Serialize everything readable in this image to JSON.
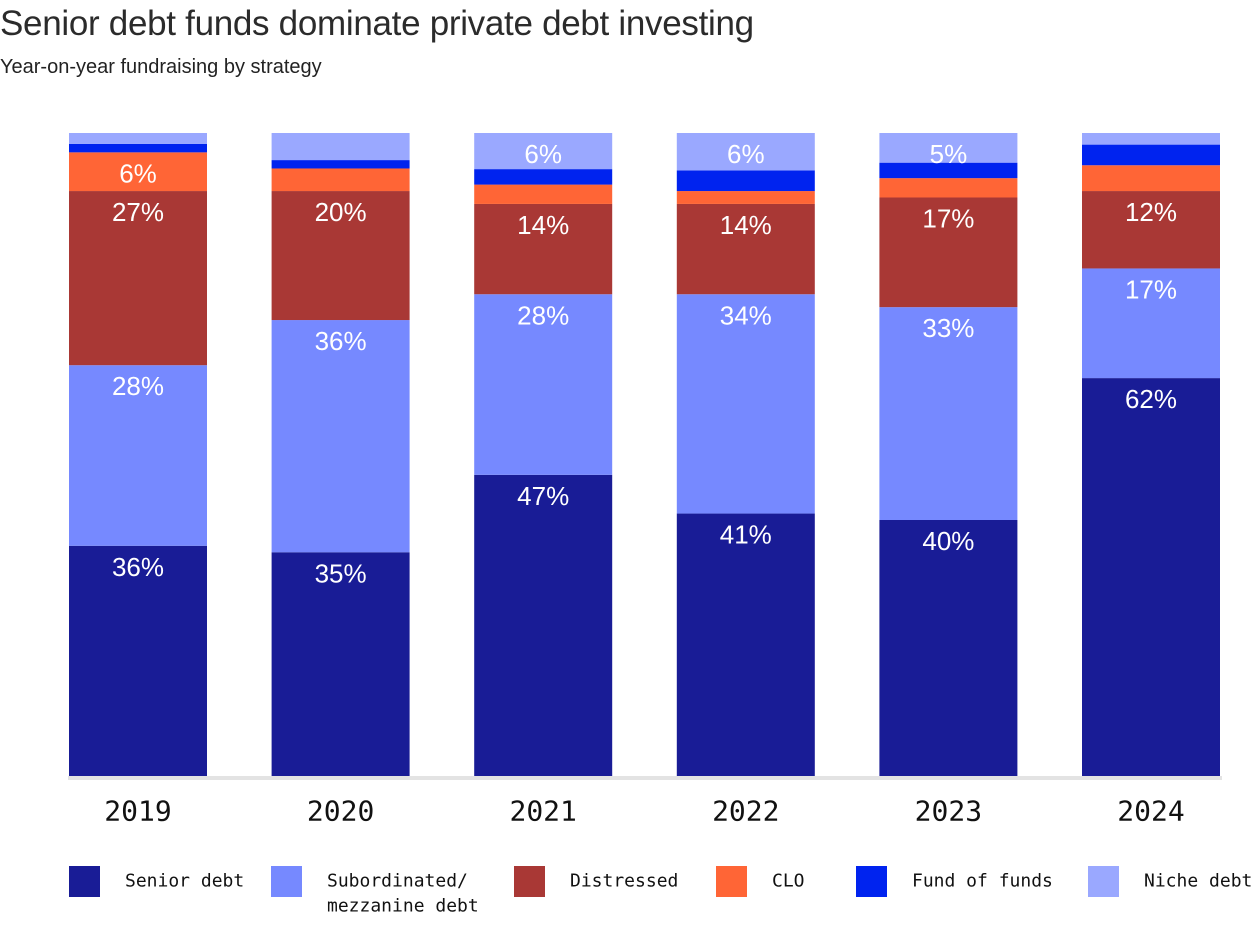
{
  "title": "Senior debt funds dominate private debt investing",
  "subtitle": "Year-on-year fundraising by strategy",
  "chart_data": {
    "type": "bar",
    "stacked": true,
    "normalized": true,
    "title": "Senior debt funds dominate private debt investing",
    "subtitle": "Year-on-year fundraising by strategy",
    "xlabel": "",
    "ylabel": "",
    "ylim": [
      0,
      100
    ],
    "grid": false,
    "legend_position": "bottom",
    "categories": [
      "2019",
      "2020",
      "2021",
      "2022",
      "2023",
      "2024"
    ],
    "series": [
      {
        "name": "Senior debt",
        "legend_label": [
          "Senior debt"
        ],
        "color": "#191c96",
        "values": [
          36,
          35,
          47,
          41,
          40,
          62
        ],
        "labels": [
          "36%",
          "35%",
          "47%",
          "41%",
          "40%",
          "62%"
        ]
      },
      {
        "name": "Subordinated/ mezzanine debt",
        "legend_label": [
          "Subordinated/",
          "mezzanine debt"
        ],
        "color": "#7689ff",
        "values": [
          28,
          36,
          28,
          34,
          33,
          17
        ],
        "labels": [
          "28%",
          "36%",
          "28%",
          "34%",
          "33%",
          "17%"
        ]
      },
      {
        "name": "Distressed",
        "legend_label": [
          "Distressed"
        ],
        "color": "#a93835",
        "values": [
          27,
          20,
          14,
          14,
          17,
          12
        ],
        "labels": [
          "27%",
          "20%",
          "14%",
          "14%",
          "17%",
          "12%"
        ]
      },
      {
        "name": "CLO",
        "legend_label": [
          "CLO"
        ],
        "color": "#ff6536",
        "values": [
          6,
          3.5,
          3,
          2,
          3,
          4
        ],
        "labels": [
          "6%",
          null,
          null,
          null,
          null,
          null
        ]
      },
      {
        "name": "Fund of funds",
        "legend_label": [
          "Fund of funds"
        ],
        "color": "#0023ef",
        "values": [
          1.3,
          1.3,
          2.4,
          3.2,
          2.4,
          3.2
        ],
        "labels": [
          null,
          null,
          null,
          null,
          null,
          null
        ]
      },
      {
        "name": "Niche debt",
        "legend_label": [
          "Niche debt"
        ],
        "color": "#9aa8ff",
        "values": [
          1.7,
          4.2,
          5.6,
          5.8,
          4.6,
          1.8
        ],
        "labels": [
          null,
          null,
          "6%",
          "6%",
          "5%",
          null
        ]
      }
    ]
  }
}
